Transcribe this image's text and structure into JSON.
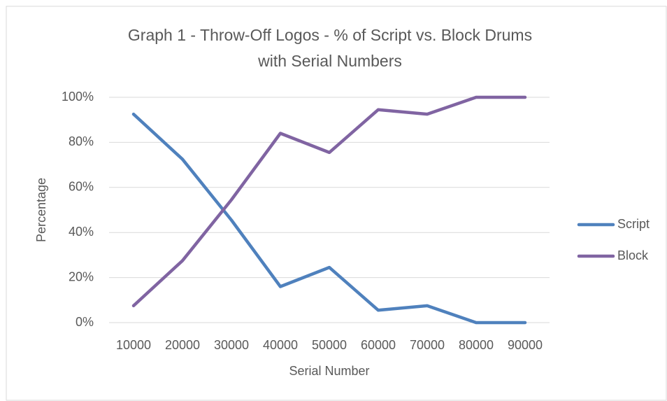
{
  "chart_data": {
    "type": "line",
    "title": "Graph 1 - Throw-Off Logos - % of Script vs. Block Drums with Serial Numbers",
    "x_label": "Serial Number",
    "y_label": "Percentage",
    "categories": [
      "10000",
      "20000",
      "30000",
      "40000",
      "50000",
      "60000",
      "70000",
      "80000",
      "90000"
    ],
    "series": [
      {
        "name": "Script",
        "color": "#4f81bd",
        "values": [
          92.5,
          72.5,
          45.5,
          16,
          24.5,
          5.5,
          7.5,
          0,
          0
        ]
      },
      {
        "name": "Block",
        "color": "#8064a2",
        "values": [
          7.5,
          27.5,
          54.5,
          84,
          75.5,
          94.5,
          92.5,
          100,
          100
        ]
      }
    ],
    "ylim": [
      0,
      100
    ],
    "yticks": [
      {
        "value": 0,
        "label": "0%"
      },
      {
        "value": 20,
        "label": "20%"
      },
      {
        "value": 40,
        "label": "40%"
      },
      {
        "value": 60,
        "label": "60%"
      },
      {
        "value": 80,
        "label": "80%"
      },
      {
        "value": 100,
        "label": "100%"
      }
    ],
    "grid": true,
    "legend": "right"
  }
}
